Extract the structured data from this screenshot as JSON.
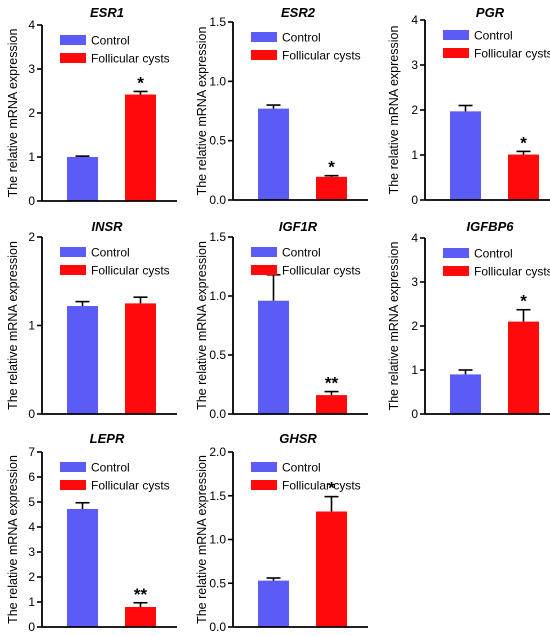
{
  "legend": {
    "control": "Control",
    "cysts": "Follicular cysts"
  },
  "colors": {
    "control": "#5B5BF5",
    "cysts": "#FF0A0A",
    "axis": "#000000"
  },
  "chart_data": [
    {
      "type": "bar",
      "title": "ESR1",
      "ylabel": "The relative mRNA expression",
      "series_names": [
        "Control",
        "Follicular cysts"
      ],
      "values": [
        1.0,
        2.42
      ],
      "errors": [
        0.02,
        0.07
      ],
      "significance": [
        "",
        "*"
      ],
      "ylim": [
        0,
        4
      ],
      "yticks": [
        0,
        1,
        2,
        3,
        4
      ],
      "tick_labels": [
        "0",
        "1",
        "2",
        "3",
        "4"
      ]
    },
    {
      "type": "bar",
      "title": "ESR2",
      "ylabel": "The relative mRNA expression",
      "series_names": [
        "Control",
        "Follicular cysts"
      ],
      "values": [
        0.77,
        0.195
      ],
      "errors": [
        0.03,
        0.01
      ],
      "significance": [
        "",
        "*"
      ],
      "ylim": [
        0,
        1.5
      ],
      "yticks": [
        0,
        0.5,
        1.0,
        1.5
      ],
      "tick_labels": [
        "0.0",
        "0.5",
        "1.0",
        "1.5"
      ]
    },
    {
      "type": "bar",
      "title": "PGR",
      "ylabel": "The relative mRNA expression",
      "series_names": [
        "Control",
        "Follicular cysts"
      ],
      "values": [
        1.97,
        1.01
      ],
      "errors": [
        0.13,
        0.07
      ],
      "significance": [
        "",
        "*"
      ],
      "ylim": [
        0,
        4
      ],
      "yticks": [
        0,
        1,
        2,
        3,
        4
      ],
      "tick_labels": [
        "0",
        "1",
        "2",
        "3",
        "4"
      ]
    },
    {
      "type": "bar",
      "title": "INSR",
      "ylabel": "The relative mRNA expression",
      "series_names": [
        "Control",
        "Follicular cysts"
      ],
      "values": [
        1.22,
        1.25
      ],
      "errors": [
        0.05,
        0.07
      ],
      "significance": [
        "",
        ""
      ],
      "ylim": [
        0,
        2
      ],
      "yticks": [
        0,
        1,
        2
      ],
      "tick_labels": [
        "0",
        "1",
        "2"
      ]
    },
    {
      "type": "bar",
      "title": "IGF1R",
      "ylabel": "The relative mRNA expression",
      "series_names": [
        "Control",
        "Follicular cysts"
      ],
      "values": [
        0.96,
        0.16
      ],
      "errors": [
        0.22,
        0.03
      ],
      "significance": [
        "",
        "**"
      ],
      "ylim": [
        0,
        1.5
      ],
      "yticks": [
        0,
        0.5,
        1.0,
        1.5
      ],
      "tick_labels": [
        "0.0",
        "0.5",
        "1.0",
        "1.5"
      ]
    },
    {
      "type": "bar",
      "title": "IGFBP6",
      "ylabel": "The relative mRNA expression",
      "series_names": [
        "Control",
        "Follicular cysts"
      ],
      "values": [
        0.9,
        2.1
      ],
      "errors": [
        0.1,
        0.27
      ],
      "significance": [
        "",
        "*"
      ],
      "ylim": [
        0,
        4
      ],
      "yticks": [
        0,
        1,
        2,
        3,
        4
      ],
      "tick_labels": [
        "0",
        "1",
        "2",
        "3",
        "4"
      ]
    },
    {
      "type": "bar",
      "title": "LEPR",
      "ylabel": "The relative mRNA expression",
      "series_names": [
        "Control",
        "Follicular cysts"
      ],
      "values": [
        4.72,
        0.8
      ],
      "errors": [
        0.25,
        0.17
      ],
      "significance": [
        "",
        "**"
      ],
      "ylim": [
        0,
        7
      ],
      "yticks": [
        0,
        1,
        2,
        3,
        4,
        5,
        6,
        7
      ],
      "tick_labels": [
        "0",
        "1",
        "2",
        "3",
        "4",
        "5",
        "6",
        "7"
      ]
    },
    {
      "type": "bar",
      "title": "GHSR",
      "ylabel": "The relative mRNA expression",
      "series_names": [
        "Control",
        "Follicular cysts"
      ],
      "values": [
        0.53,
        1.32
      ],
      "errors": [
        0.03,
        0.17
      ],
      "significance": [
        "",
        "*"
      ],
      "ylim": [
        0,
        2
      ],
      "yticks": [
        0,
        0.5,
        1.0,
        1.5,
        2.0
      ],
      "tick_labels": [
        "0.0",
        "0.5",
        "1.0",
        "1.5",
        "2.0"
      ]
    }
  ]
}
